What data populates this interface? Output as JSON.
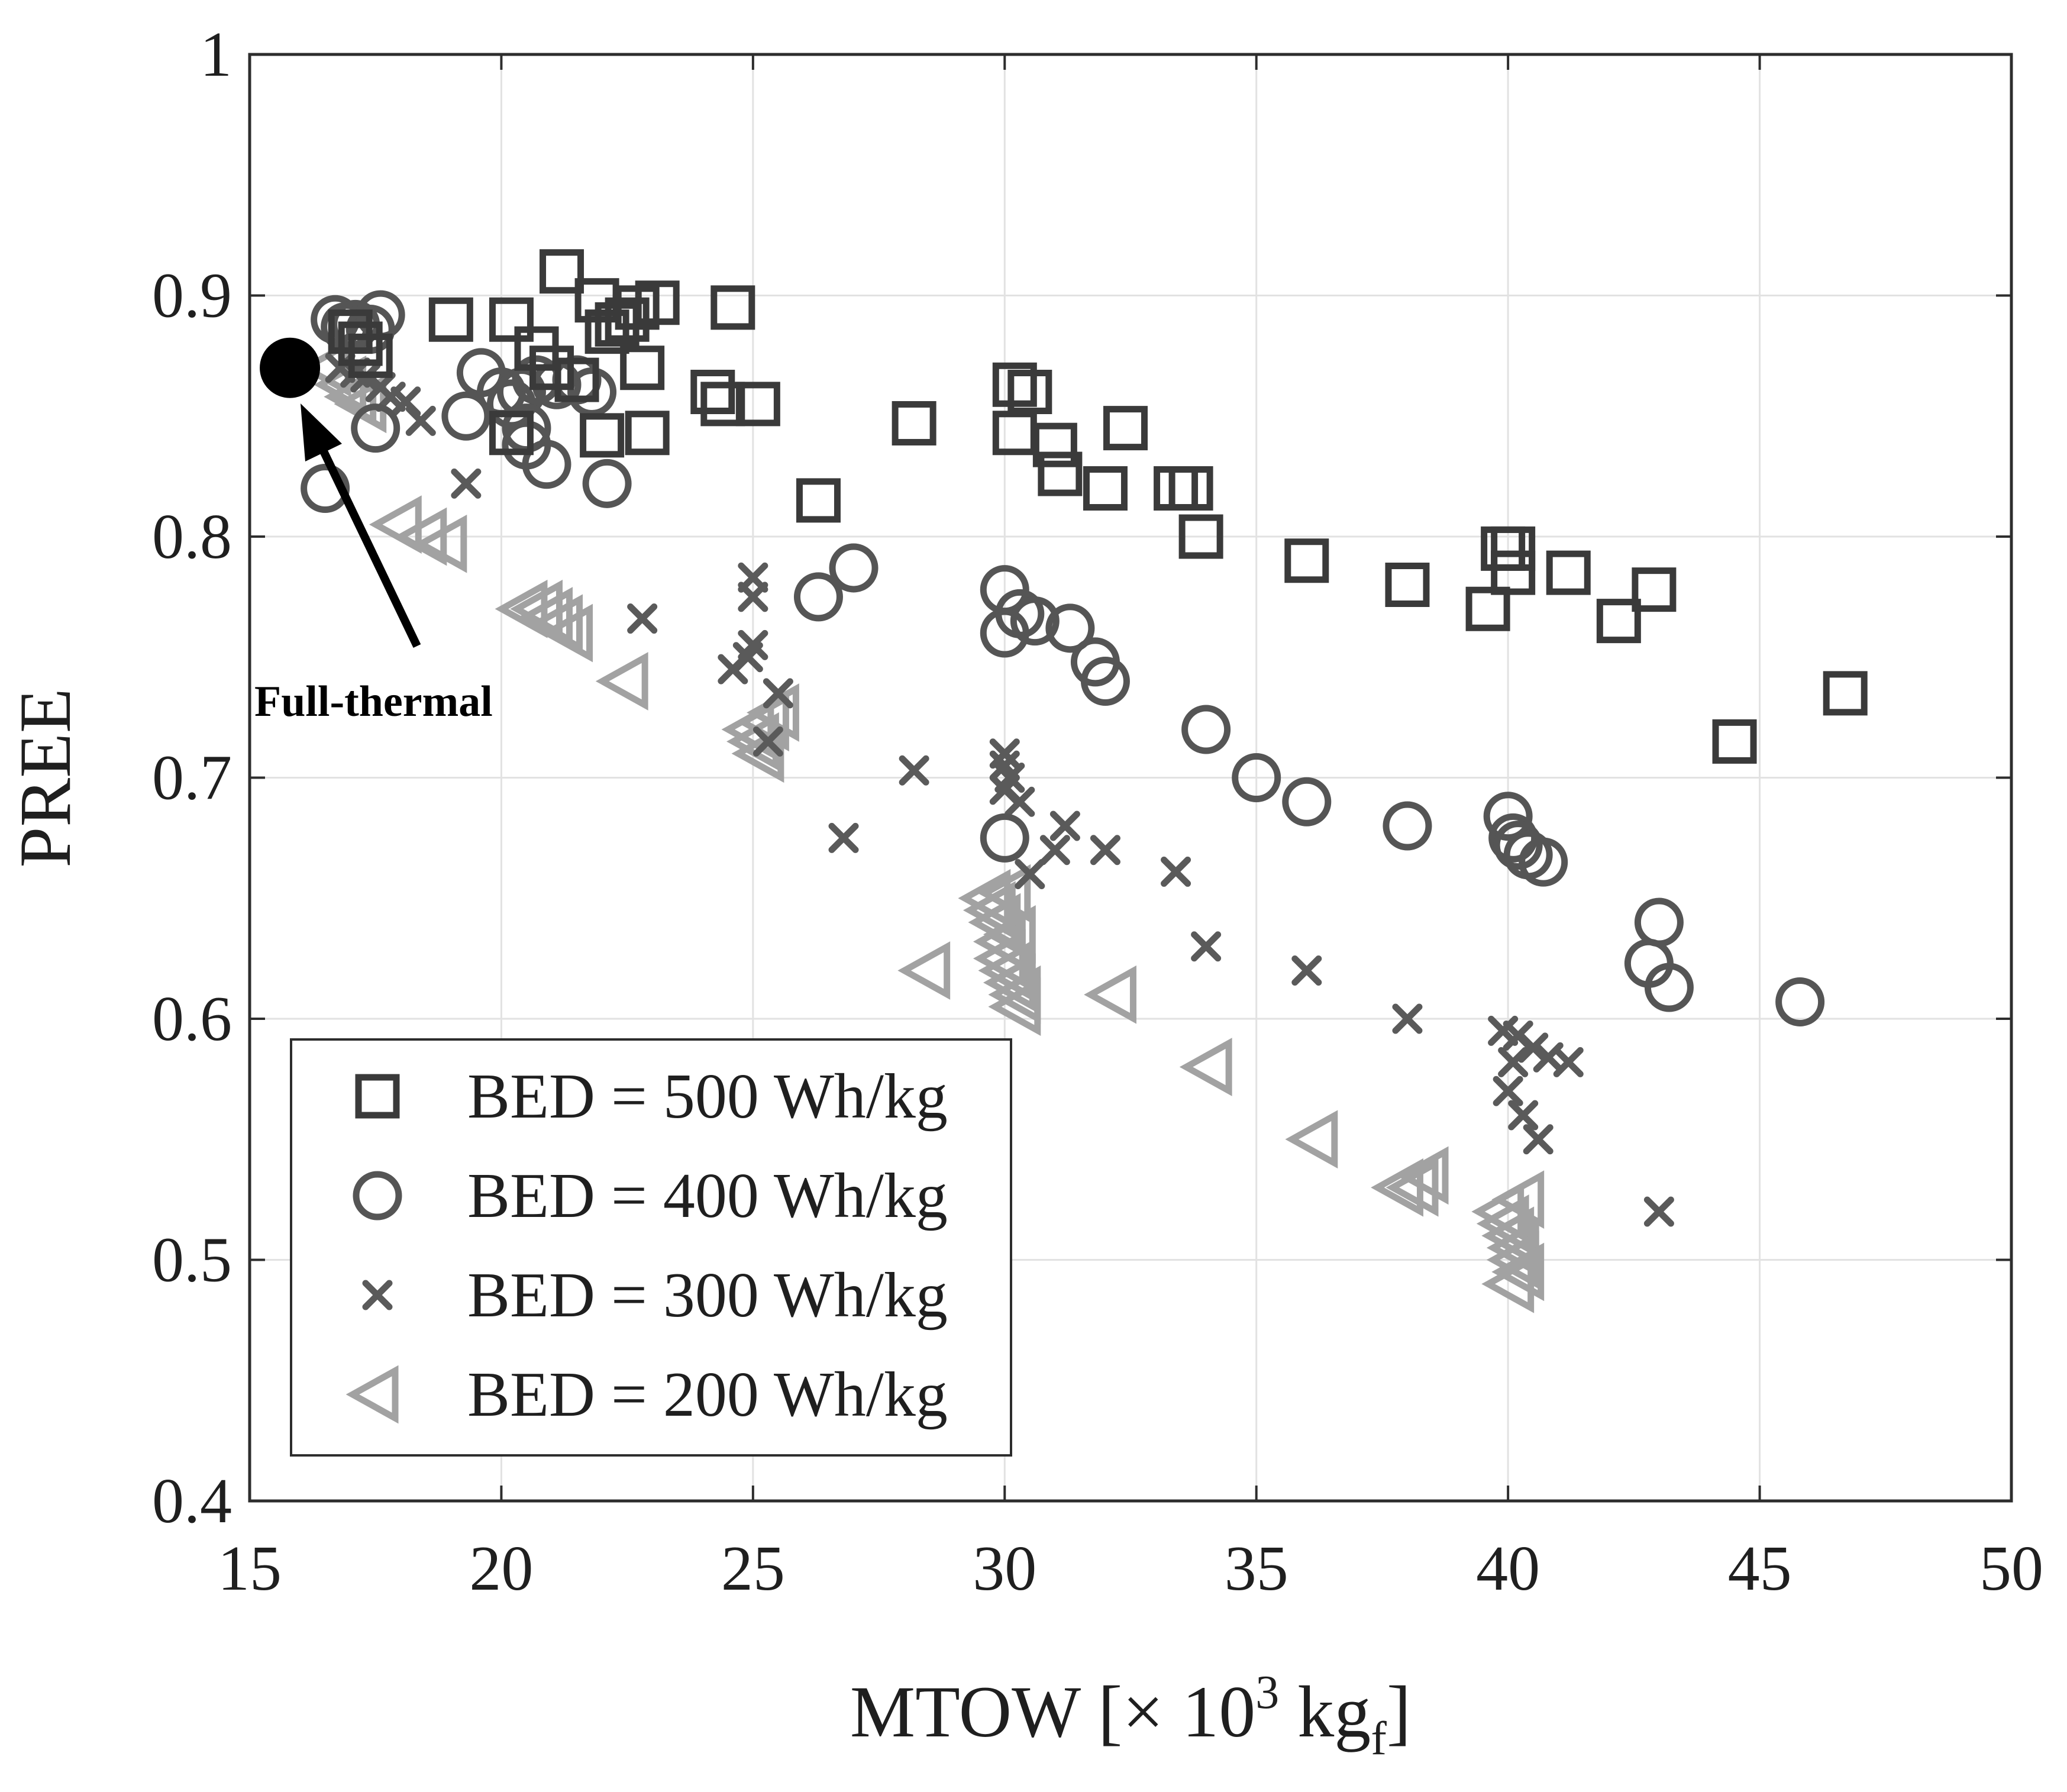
{
  "chart_data": {
    "type": "scatter",
    "title": "",
    "xlabel": "MTOW [× 10³ kg_f]",
    "xlabel_parts": {
      "base": "MTOW [× 10",
      "sup": "3",
      "mid": " kg",
      "sub": "f",
      "end": "]"
    },
    "ylabel": "PREE",
    "xlim": [
      15,
      50
    ],
    "ylim": [
      0.4,
      1
    ],
    "xticks": [
      15,
      20,
      25,
      30,
      35,
      40,
      45,
      50
    ],
    "yticks": [
      0.4,
      0.5,
      0.6,
      0.7,
      0.8,
      0.9,
      1
    ],
    "xtick_labels": [
      "15",
      "20",
      "25",
      "30",
      "35",
      "40",
      "45",
      "50"
    ],
    "ytick_labels": [
      "0.4",
      "0.5",
      "0.6",
      "0.7",
      "0.8",
      "0.9",
      "1"
    ],
    "grid": true,
    "legend_position": "bottom-left",
    "series": [
      {
        "name": "BED = 500 Wh/kg",
        "marker": "square",
        "color": "#3a3a3a",
        "points": [
          [
            17,
            0.885
          ],
          [
            17.2,
            0.88
          ],
          [
            17.4,
            0.875
          ],
          [
            19,
            0.89
          ],
          [
            20.2,
            0.89
          ],
          [
            20.7,
            0.878
          ],
          [
            21,
            0.87
          ],
          [
            21.5,
            0.865
          ],
          [
            21.2,
            0.91
          ],
          [
            21.9,
            0.898
          ],
          [
            22.1,
            0.885
          ],
          [
            22.3,
            0.888
          ],
          [
            22.5,
            0.89
          ],
          [
            22.7,
            0.895
          ],
          [
            23.1,
            0.897
          ],
          [
            22.8,
            0.87
          ],
          [
            22.9,
            0.843
          ],
          [
            22,
            0.842
          ],
          [
            20.2,
            0.843
          ],
          [
            24.2,
            0.86
          ],
          [
            24.4,
            0.855
          ],
          [
            25.1,
            0.855
          ],
          [
            24.6,
            0.895
          ],
          [
            26.3,
            0.815
          ],
          [
            28.2,
            0.847
          ],
          [
            30.2,
            0.863
          ],
          [
            30.5,
            0.86
          ],
          [
            30.2,
            0.843
          ],
          [
            31,
            0.838
          ],
          [
            31.1,
            0.826
          ],
          [
            32,
            0.82
          ],
          [
            32.4,
            0.845
          ],
          [
            33.4,
            0.82
          ],
          [
            33.7,
            0.82
          ],
          [
            33.9,
            0.8
          ],
          [
            36,
            0.79
          ],
          [
            38,
            0.78
          ],
          [
            39.6,
            0.77
          ],
          [
            39.9,
            0.795
          ],
          [
            40.1,
            0.795
          ],
          [
            40.1,
            0.785
          ],
          [
            41.2,
            0.785
          ],
          [
            42.2,
            0.765
          ],
          [
            42.9,
            0.778
          ],
          [
            44.5,
            0.715
          ],
          [
            46.7,
            0.735
          ]
        ]
      },
      {
        "name": "BED = 400 Wh/kg",
        "marker": "circle",
        "color": "#555555",
        "points": [
          [
            16.5,
            0.82
          ],
          [
            16.7,
            0.89
          ],
          [
            16.9,
            0.887
          ],
          [
            17.1,
            0.888
          ],
          [
            17.4,
            0.886
          ],
          [
            17.6,
            0.892
          ],
          [
            17.5,
            0.845
          ],
          [
            19.3,
            0.85
          ],
          [
            19.6,
            0.868
          ],
          [
            20,
            0.86
          ],
          [
            20.2,
            0.855
          ],
          [
            20.4,
            0.86
          ],
          [
            20.5,
            0.845
          ],
          [
            20.7,
            0.865
          ],
          [
            20.9,
            0.83
          ],
          [
            21.1,
            0.863
          ],
          [
            21.5,
            0.865
          ],
          [
            21.8,
            0.86
          ],
          [
            20.5,
            0.838
          ],
          [
            22.1,
            0.822
          ],
          [
            26.3,
            0.775
          ],
          [
            27,
            0.787
          ],
          [
            30,
            0.778
          ],
          [
            30,
            0.76
          ],
          [
            30.3,
            0.768
          ],
          [
            30.6,
            0.765
          ],
          [
            31.3,
            0.762
          ],
          [
            31.8,
            0.748
          ],
          [
            32,
            0.74
          ],
          [
            34,
            0.72
          ],
          [
            35,
            0.7
          ],
          [
            36,
            0.69
          ],
          [
            38,
            0.68
          ],
          [
            40,
            0.684
          ],
          [
            40.1,
            0.675
          ],
          [
            40.2,
            0.672
          ],
          [
            40.4,
            0.668
          ],
          [
            40.7,
            0.665
          ],
          [
            42.8,
            0.623
          ],
          [
            43,
            0.64
          ],
          [
            43.2,
            0.613
          ],
          [
            45.8,
            0.607
          ],
          [
            30,
            0.675
          ]
        ]
      },
      {
        "name": "BED = 300 Wh/kg",
        "marker": "x",
        "color": "#5a5a5a",
        "points": [
          [
            16.8,
            0.87
          ],
          [
            17.1,
            0.868
          ],
          [
            17.3,
            0.866
          ],
          [
            17.6,
            0.862
          ],
          [
            17.8,
            0.858
          ],
          [
            18.1,
            0.856
          ],
          [
            18.4,
            0.848
          ],
          [
            19.3,
            0.822
          ],
          [
            22.8,
            0.766
          ],
          [
            24.6,
            0.745
          ],
          [
            24.9,
            0.75
          ],
          [
            25,
            0.755
          ],
          [
            25,
            0.775
          ],
          [
            25,
            0.783
          ],
          [
            25.5,
            0.735
          ],
          [
            25.3,
            0.715
          ],
          [
            26.8,
            0.675
          ],
          [
            28.2,
            0.703
          ],
          [
            30,
            0.71
          ],
          [
            30,
            0.705
          ],
          [
            30,
            0.695
          ],
          [
            30.1,
            0.7
          ],
          [
            30.3,
            0.69
          ],
          [
            30.5,
            0.66
          ],
          [
            31,
            0.67
          ],
          [
            31.2,
            0.68
          ],
          [
            32,
            0.67
          ],
          [
            33.4,
            0.661
          ],
          [
            34,
            0.63
          ],
          [
            36,
            0.62
          ],
          [
            38,
            0.6
          ],
          [
            39.9,
            0.595
          ],
          [
            40.1,
            0.582
          ],
          [
            40.2,
            0.593
          ],
          [
            40.5,
            0.588
          ],
          [
            40.8,
            0.584
          ],
          [
            41.2,
            0.582
          ],
          [
            40,
            0.57
          ],
          [
            40.3,
            0.56
          ],
          [
            40.6,
            0.55
          ],
          [
            43,
            0.52
          ]
        ]
      },
      {
        "name": "BED = 200 Wh/kg",
        "marker": "triangle-left",
        "color": "#a2a2a2",
        "points": [
          [
            16.6,
            0.87
          ],
          [
            16.9,
            0.863
          ],
          [
            17.1,
            0.858
          ],
          [
            17.3,
            0.855
          ],
          [
            18,
            0.805
          ],
          [
            18.5,
            0.8
          ],
          [
            18.9,
            0.797
          ],
          [
            20.5,
            0.77
          ],
          [
            20.8,
            0.77
          ],
          [
            21,
            0.767
          ],
          [
            21.2,
            0.764
          ],
          [
            21.4,
            0.76
          ],
          [
            22.5,
            0.74
          ],
          [
            25,
            0.72
          ],
          [
            25.1,
            0.715
          ],
          [
            25.3,
            0.723
          ],
          [
            25.5,
            0.727
          ],
          [
            25.2,
            0.71
          ],
          [
            28.5,
            0.62
          ],
          [
            29.7,
            0.65
          ],
          [
            29.8,
            0.645
          ],
          [
            29.9,
            0.64
          ],
          [
            30,
            0.632
          ],
          [
            30,
            0.625
          ],
          [
            30.1,
            0.62
          ],
          [
            30.2,
            0.615
          ],
          [
            30.3,
            0.61
          ],
          [
            30.3,
            0.605
          ],
          [
            30.2,
            0.635
          ],
          [
            30.1,
            0.652
          ],
          [
            32.2,
            0.61
          ],
          [
            34.1,
            0.58
          ],
          [
            36.2,
            0.55
          ],
          [
            37.9,
            0.53
          ],
          [
            38.2,
            0.53
          ],
          [
            38.4,
            0.535
          ],
          [
            39.9,
            0.52
          ],
          [
            40,
            0.515
          ],
          [
            40.1,
            0.51
          ],
          [
            40.2,
            0.505
          ],
          [
            40.2,
            0.5
          ],
          [
            40.3,
            0.495
          ],
          [
            40.3,
            0.525
          ],
          [
            40.1,
            0.49
          ]
        ]
      },
      {
        "name": "Full-thermal",
        "marker": "filled-circle",
        "color": "#000000",
        "legend": false,
        "points": [
          [
            15.8,
            0.87
          ]
        ]
      }
    ],
    "annotations": [
      {
        "text": "Full-thermal",
        "points_to": [
          16,
          0.86
        ]
      }
    ]
  }
}
